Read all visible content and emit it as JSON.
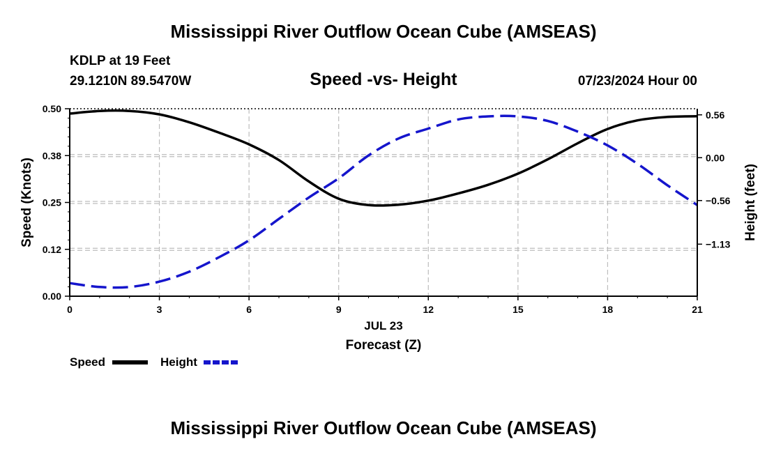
{
  "header": {
    "title": "Mississippi River Outflow Ocean Cube (AMSEAS)",
    "station": "KDLP at 19 Feet",
    "coords": "29.1210N  89.5470W",
    "subtitle": "Speed -vs- Height",
    "timestamp": "07/23/2024 Hour 00"
  },
  "footer": {
    "title": "Mississippi River Outflow Ocean Cube (AMSEAS)"
  },
  "chart_data": {
    "type": "line",
    "title": "Speed -vs- Height",
    "xlabel": "Forecast (Z)",
    "xdate_label": "JUL 23",
    "ylabel": "Speed (Knots)",
    "y2label": "Height (feet)",
    "xlim": [
      0,
      21
    ],
    "ylim": [
      0,
      0.5
    ],
    "y2lim": [
      -1.81,
      0.64
    ],
    "grid": true,
    "x_ticks": [
      "0",
      "3",
      "6",
      "9",
      "12",
      "15",
      "18",
      "21"
    ],
    "x_tick_values": [
      0,
      3,
      6,
      9,
      12,
      15,
      18,
      21
    ],
    "y_ticks": [
      "0.00",
      "0.12",
      "0.25",
      "0.38",
      "0.50"
    ],
    "y_tick_values": [
      0,
      0.125,
      0.25,
      0.375,
      0.5
    ],
    "y2_ticks": [
      "0.56",
      "0.00",
      "−0.56",
      "−1.13"
    ],
    "y2_tick_values": [
      0.56,
      0.0,
      -0.56,
      -1.13
    ],
    "series": [
      {
        "name": "Speed",
        "axis": "left",
        "color": "#000000",
        "dash": "solid",
        "x": [
          0,
          1,
          2,
          3,
          4,
          5,
          6,
          7,
          8,
          9,
          10,
          11,
          12,
          13,
          14,
          15,
          16,
          17,
          18,
          19,
          20,
          21
        ],
        "values": [
          0.487,
          0.494,
          0.494,
          0.485,
          0.464,
          0.436,
          0.405,
          0.363,
          0.306,
          0.26,
          0.243,
          0.244,
          0.255,
          0.274,
          0.297,
          0.327,
          0.365,
          0.408,
          0.446,
          0.469,
          0.478,
          0.48
        ]
      },
      {
        "name": "Height",
        "axis": "right",
        "color": "#1515cc",
        "dash": "dashed",
        "x": [
          0,
          1,
          2,
          3,
          4,
          5,
          6,
          7,
          8,
          9,
          10,
          11,
          12,
          13,
          14,
          15,
          16,
          17,
          18,
          19,
          20,
          21
        ],
        "values": [
          -1.64,
          -1.69,
          -1.69,
          -1.62,
          -1.49,
          -1.3,
          -1.08,
          -0.8,
          -0.52,
          -0.27,
          0.03,
          0.25,
          0.38,
          0.5,
          0.54,
          0.54,
          0.48,
          0.34,
          0.16,
          -0.08,
          -0.36,
          -0.62
        ]
      }
    ],
    "legend": [
      "Speed",
      "Height"
    ]
  }
}
